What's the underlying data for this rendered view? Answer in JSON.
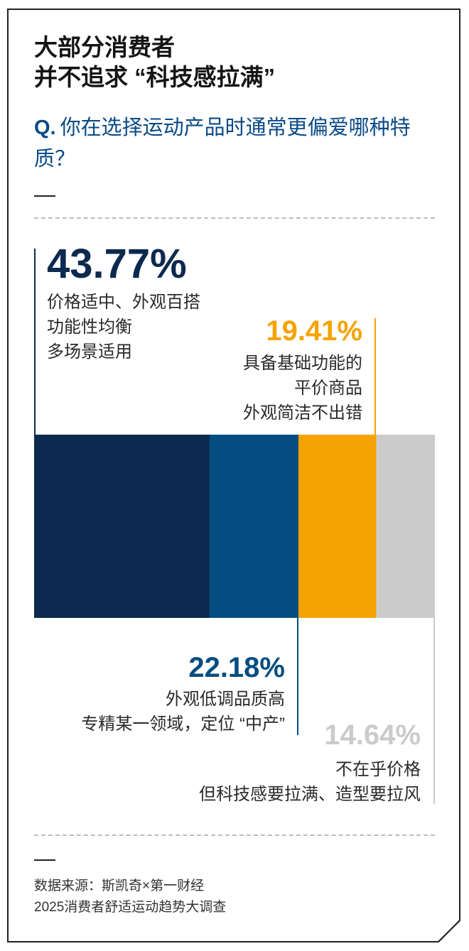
{
  "title": {
    "line1": "大部分消费者",
    "line2": "并不追求 “科技感拉满”"
  },
  "question": {
    "prefix": "Q.",
    "text": "你在选择运动产品时通常更偏爱哪种特质？"
  },
  "colors": {
    "navy": "#0c2a4f",
    "blue": "#044d80",
    "orange": "#f5a300",
    "gray": "#cbcbcb",
    "question": "#0a4a86"
  },
  "chart_data": {
    "type": "bar",
    "orientation": "stacked-horizontal",
    "unit": "%",
    "segments": [
      {
        "value": 43.77,
        "label": "43.77%",
        "lines": [
          "价格适中、外观百搭",
          "功能性均衡",
          "多场景适用"
        ]
      },
      {
        "value": 22.18,
        "label": "22.18%",
        "lines": [
          "外观低调品质高",
          "专精某一领域，定位 “中产”"
        ]
      },
      {
        "value": 19.41,
        "label": "19.41%",
        "lines": [
          "具备基础功能的",
          "平价商品",
          "外观简洁不出错"
        ]
      },
      {
        "value": 14.64,
        "label": "14.64%",
        "lines": [
          "不在乎价格",
          "但科技感要拉满、造型要拉风"
        ]
      }
    ]
  },
  "footer": {
    "line1": "数据来源：斯凯奇×第一财经",
    "line2": "2025消费者舒适运动趋势大调查"
  }
}
